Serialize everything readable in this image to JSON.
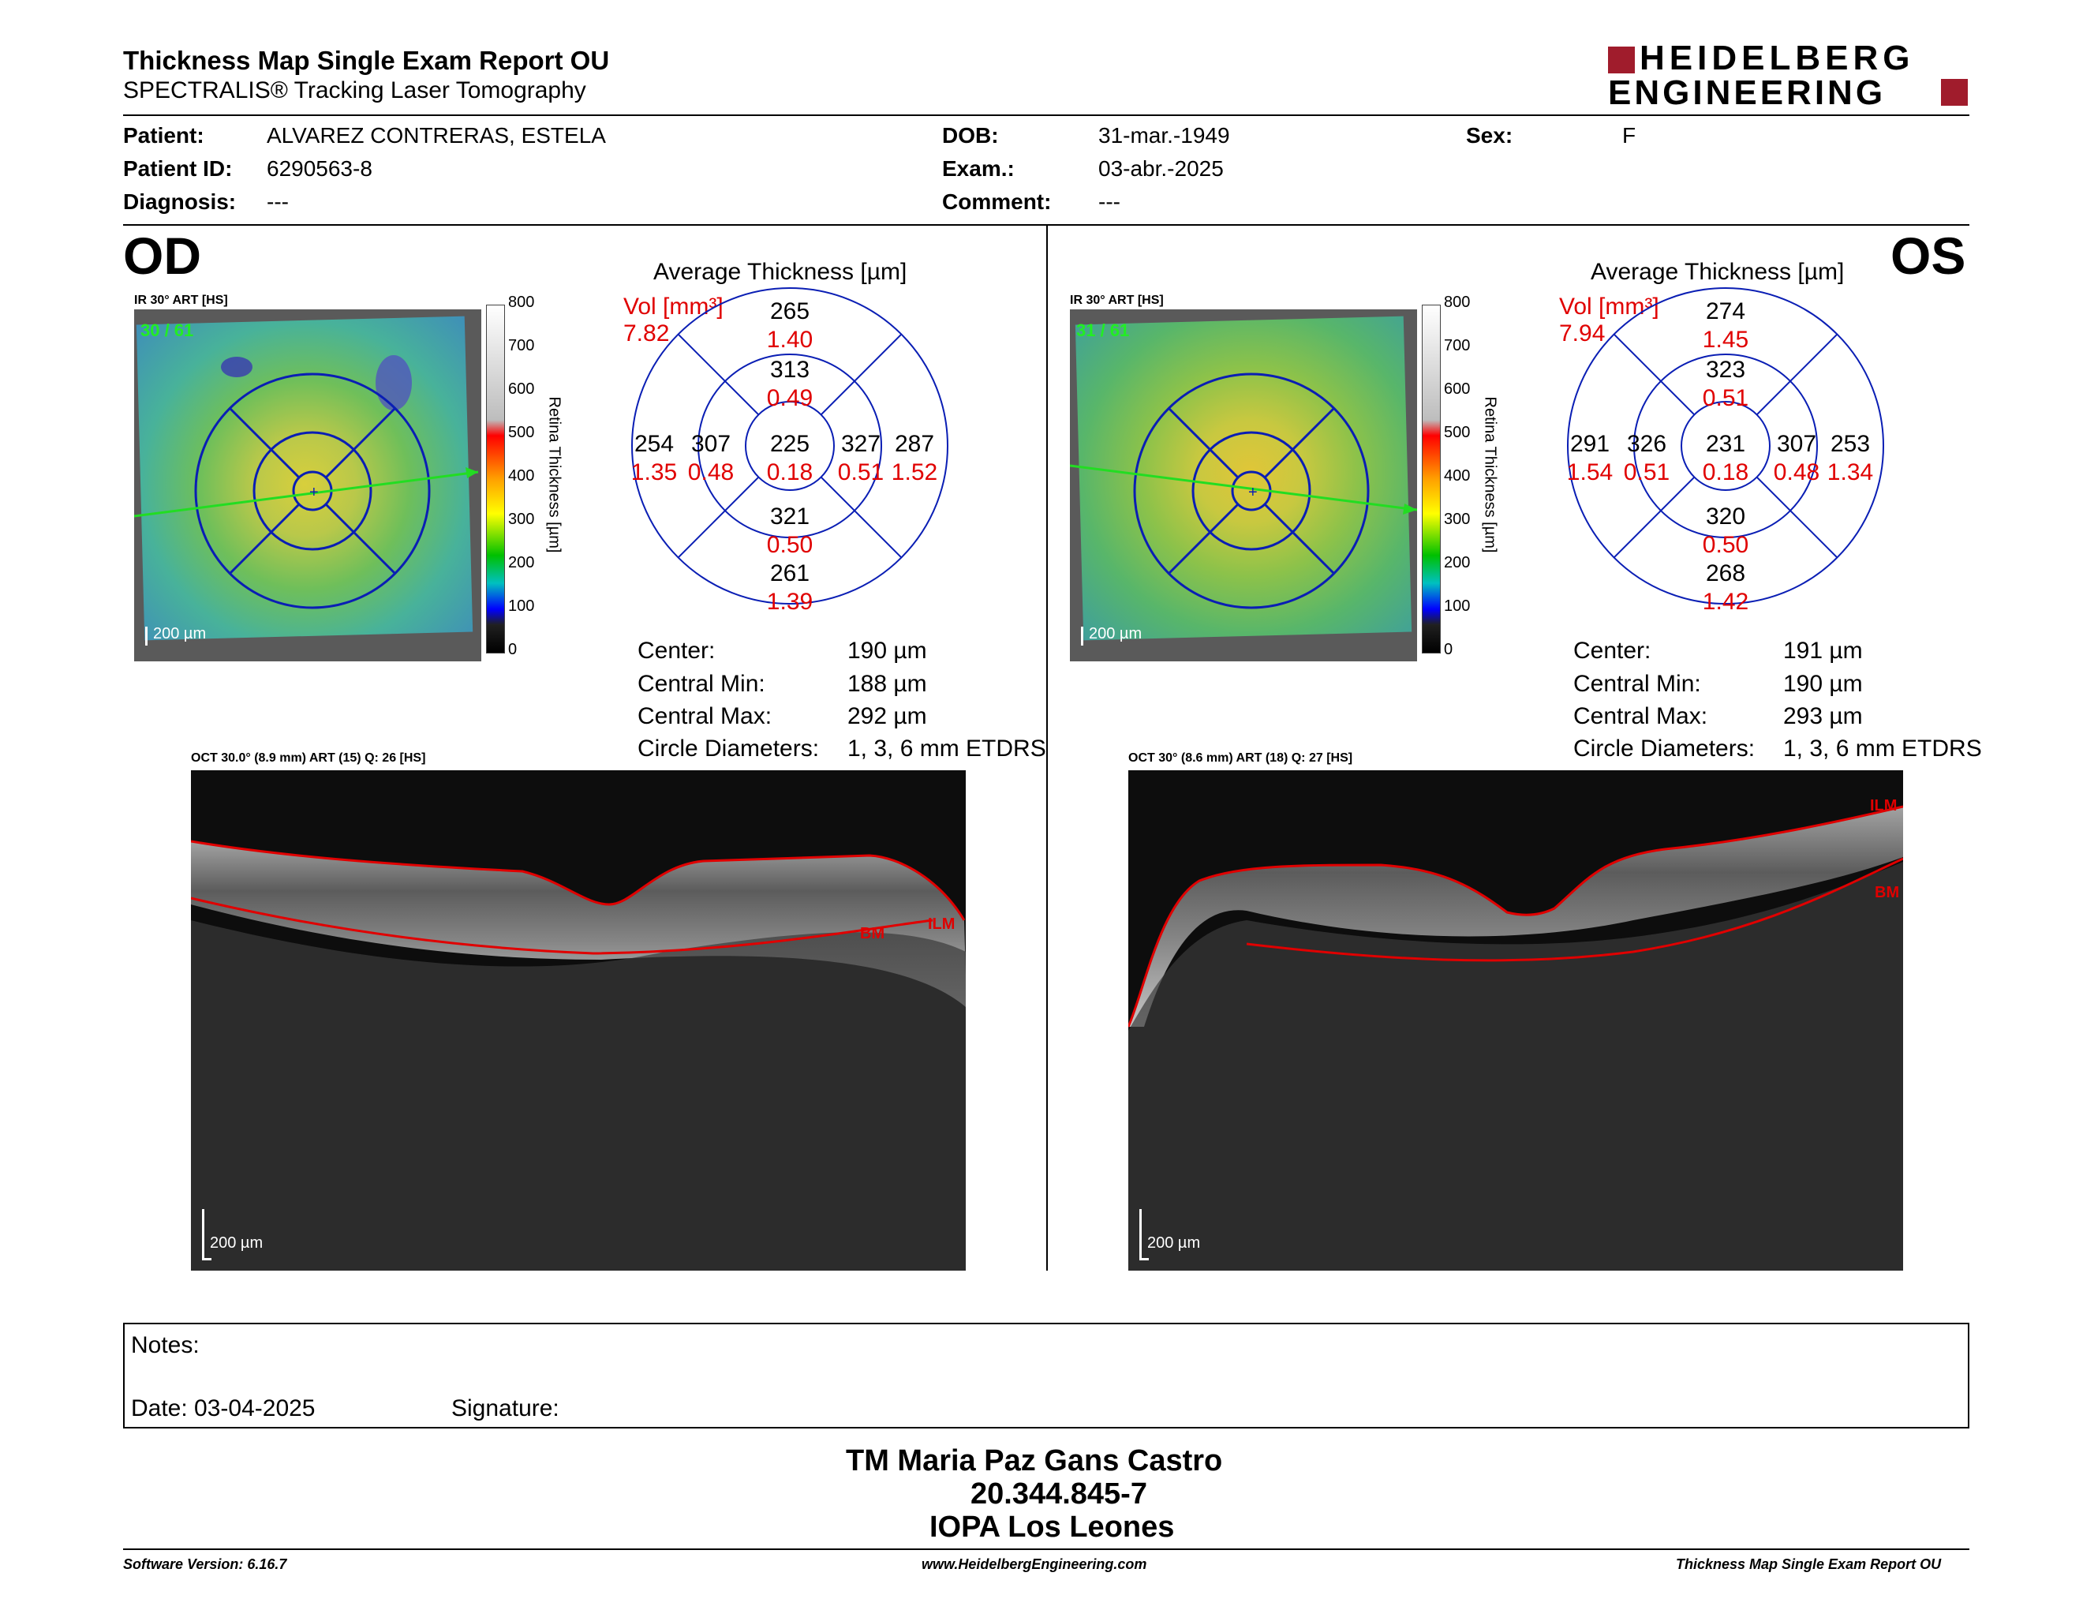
{
  "header": {
    "title": "Thickness Map Single Exam Report OU",
    "subtitle": "SPECTRALIS® Tracking Laser Tomography",
    "logo_line1": "HEIDELBERG",
    "logo_line2": "ENGINEERING"
  },
  "patient": {
    "patient_label": "Patient:",
    "patient_value": "ALVAREZ CONTRERAS, ESTELA",
    "id_label": "Patient ID:",
    "id_value": "6290563-8",
    "diag_label": "Diagnosis:",
    "diag_value": "---",
    "dob_label": "DOB:",
    "dob_value": "31-mar.-1949",
    "exam_label": "Exam.:",
    "exam_value": "03-abr.-2025",
    "comment_label": "Comment:",
    "comment_value": "---",
    "sex_label": "Sex:",
    "sex_value": "F"
  },
  "colors": {
    "accent_red": "#e00000",
    "grid_blue": "#0a1eb4",
    "logo_red": "#a01c2c"
  },
  "od": {
    "eye": "OD",
    "ir_label": "IR 30° ART [HS]",
    "frame": "30 / 61",
    "scale": "200 µm",
    "avg_title": "Average Thickness [µm]",
    "vol_label": "Vol [mm³]",
    "vol_value": "7.82",
    "sectors": {
      "outer_sup": "265",
      "outer_sup_v": "1.40",
      "inner_sup": "313",
      "inner_sup_v": "0.49",
      "outer_temp": "254",
      "outer_temp_v": "1.35",
      "inner_temp": "307",
      "inner_temp_v": "0.48",
      "center": "225",
      "center_v": "0.18",
      "inner_nas": "327",
      "inner_nas_v": "0.51",
      "outer_nas": "287",
      "outer_nas_v": "1.52",
      "inner_inf": "321",
      "inner_inf_v": "0.50",
      "outer_inf": "261",
      "outer_inf_v": "1.39"
    },
    "center_label": "Center:",
    "center_value": "190 µm",
    "cmin_label": "Central Min:",
    "cmin_value": "188 µm",
    "cmax_label": "Central Max:",
    "cmax_value": "292 µm",
    "circ_label": "Circle Diameters:",
    "circ_value": "1, 3, 6 mm ETDRS",
    "oct_label": "OCT 30.0° (8.9 mm) ART (15) Q: 26 [HS]",
    "oct_scale": "200 µm",
    "ilm": "ILM",
    "bm": "BM"
  },
  "os": {
    "eye": "OS",
    "ir_label": "IR 30° ART [HS]",
    "frame": "31 / 61",
    "scale": "200 µm",
    "avg_title": "Average Thickness [µm]",
    "vol_label": "Vol [mm³]",
    "vol_value": "7.94",
    "sectors": {
      "outer_sup": "274",
      "outer_sup_v": "1.45",
      "inner_sup": "323",
      "inner_sup_v": "0.51",
      "outer_temp": "291",
      "outer_temp_v": "1.54",
      "inner_temp": "326",
      "inner_temp_v": "0.51",
      "center": "231",
      "center_v": "0.18",
      "inner_nas": "307",
      "inner_nas_v": "0.48",
      "outer_nas": "253",
      "outer_nas_v": "1.34",
      "inner_inf": "320",
      "inner_inf_v": "0.50",
      "outer_inf": "268",
      "outer_inf_v": "1.42"
    },
    "center_label": "Center:",
    "center_value": "191 µm",
    "cmin_label": "Central Min:",
    "cmin_value": "190 µm",
    "cmax_label": "Central Max:",
    "cmax_value": "293 µm",
    "circ_label": "Circle Diameters:",
    "circ_value": "1, 3, 6 mm ETDRS",
    "oct_label": "OCT 30° (8.6 mm) ART (18) Q: 27 [HS]",
    "oct_scale": "200 µm",
    "ilm": "ILM",
    "bm": "BM"
  },
  "colorbar": {
    "ticks": [
      "800",
      "700",
      "600",
      "500",
      "400",
      "300",
      "200",
      "100",
      "0"
    ],
    "title": "Retina Thickness [µm]"
  },
  "notes": {
    "notes_label": "Notes:",
    "date_label": "Date: 03-04-2025",
    "signature_label": "Signature:"
  },
  "signer": {
    "name": "TM Maria Paz Gans Castro",
    "rut": "20.344.845-7",
    "institution": "IOPA Los Leones"
  },
  "footer": {
    "software": "Software Version: 6.16.7",
    "website": "www.HeidelbergEngineering.com",
    "report": "Thickness Map Single Exam Report OU"
  }
}
